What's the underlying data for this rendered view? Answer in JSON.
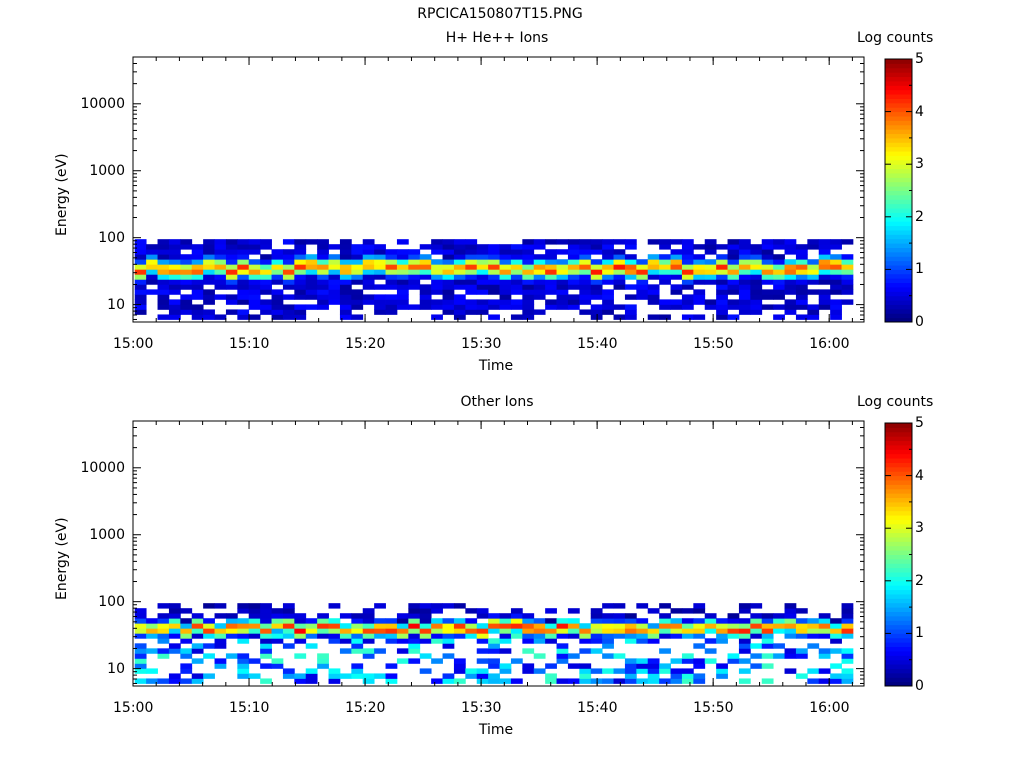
{
  "figure_title": "RPCICA150807T15.PNG",
  "chart_data": [
    {
      "type": "heatmap",
      "title": "H+ He++ Ions",
      "xlabel": "Time",
      "ylabel": "Energy (eV)",
      "x_range": [
        "15:00",
        "16:03"
      ],
      "y_range": [
        5.5,
        50000
      ],
      "y_scale": "log",
      "x_ticks": [
        "15:00",
        "15:10",
        "15:20",
        "15:30",
        "15:40",
        "15:50",
        "16:00"
      ],
      "y_ticks": [
        "10",
        "100",
        "1000",
        "10000"
      ],
      "colorbar": {
        "label": "Log counts",
        "range": [
          0,
          5
        ],
        "ticks": [
          "0",
          "1",
          "2",
          "3",
          "4",
          "5"
        ]
      },
      "data_extent_energy": [
        6,
        95
      ],
      "peak_energy_eV": 35,
      "peak_log_counts": 4.3,
      "grid": false
    },
    {
      "type": "heatmap",
      "title": "Other Ions",
      "xlabel": "Time",
      "ylabel": "Energy (eV)",
      "x_range": [
        "15:00",
        "16:03"
      ],
      "y_range": [
        5.5,
        50000
      ],
      "y_scale": "log",
      "x_ticks": [
        "15:00",
        "15:10",
        "15:20",
        "15:30",
        "15:40",
        "15:50",
        "16:00"
      ],
      "y_ticks": [
        "10",
        "100",
        "1000",
        "10000"
      ],
      "colorbar": {
        "label": "Log counts",
        "range": [
          0,
          5
        ],
        "ticks": [
          "0",
          "1",
          "2",
          "3",
          "4",
          "5"
        ]
      },
      "data_extent_energy": [
        6,
        95
      ],
      "peak_energy_eV": 40,
      "peak_log_counts": 4.4,
      "grid": false
    }
  ]
}
